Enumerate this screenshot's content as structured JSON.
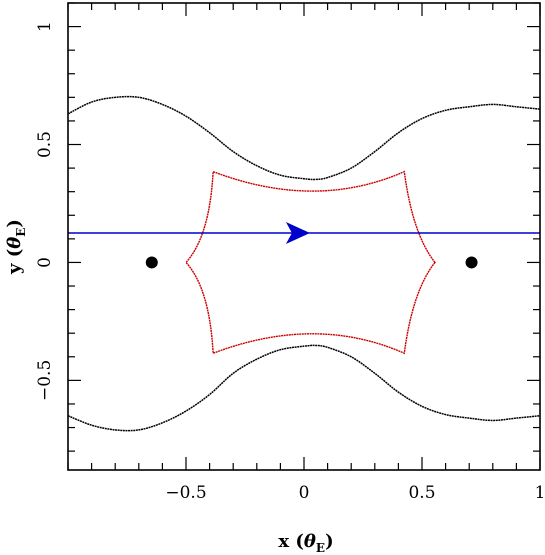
{
  "chart_data": {
    "type": "scatter",
    "xlabel": "x (θ_E)",
    "ylabel": "y (θ_E)",
    "axis_label_parts": {
      "x": {
        "lead": "x (",
        "theta": "θ",
        "sub": "E",
        "tail": ")"
      },
      "y": {
        "lead": "y (",
        "theta": "θ",
        "sub": "E",
        "tail": ")"
      }
    },
    "xlim": [
      -1.0,
      1.0
    ],
    "ylim": [
      -0.88,
      1.1
    ],
    "xticks": [
      {
        "value": -0.5,
        "label": "−0.5"
      },
      {
        "value": 0,
        "label": "0"
      },
      {
        "value": 0.5,
        "label": "0.5"
      },
      {
        "value": 1,
        "label": "1"
      }
    ],
    "yticks": [
      {
        "value": -0.5,
        "label": "−0.5"
      },
      {
        "value": 0,
        "label": "0"
      },
      {
        "value": 0.5,
        "label": "0.5"
      },
      {
        "value": 1,
        "label": "1"
      }
    ],
    "x_minor_step": 0.1,
    "y_minor_step": 0.1,
    "grid": false,
    "series": [
      {
        "role": "critical-curve-upper",
        "color": "#000000",
        "points": [
          [
            -1.0,
            0.63
          ],
          [
            -0.9,
            0.68
          ],
          [
            -0.8,
            0.7
          ],
          [
            -0.7,
            0.7
          ],
          [
            -0.6,
            0.67
          ],
          [
            -0.5,
            0.62
          ],
          [
            -0.4,
            0.55
          ],
          [
            -0.3,
            0.47
          ],
          [
            -0.2,
            0.41
          ],
          [
            -0.1,
            0.37
          ],
          [
            0.0,
            0.355
          ],
          [
            0.05,
            0.352
          ],
          [
            0.1,
            0.36
          ],
          [
            0.2,
            0.4
          ],
          [
            0.3,
            0.47
          ],
          [
            0.4,
            0.55
          ],
          [
            0.5,
            0.61
          ],
          [
            0.6,
            0.645
          ],
          [
            0.7,
            0.66
          ],
          [
            0.8,
            0.67
          ],
          [
            0.9,
            0.66
          ],
          [
            1.0,
            0.65
          ]
        ]
      },
      {
        "role": "critical-curve-lower",
        "color": "#000000",
        "points": [
          [
            -1.0,
            -0.65
          ],
          [
            -0.9,
            -0.69
          ],
          [
            -0.8,
            -0.71
          ],
          [
            -0.7,
            -0.71
          ],
          [
            -0.6,
            -0.68
          ],
          [
            -0.5,
            -0.63
          ],
          [
            -0.4,
            -0.56
          ],
          [
            -0.3,
            -0.47
          ],
          [
            -0.2,
            -0.41
          ],
          [
            -0.1,
            -0.37
          ],
          [
            0.0,
            -0.355
          ],
          [
            0.05,
            -0.352
          ],
          [
            0.1,
            -0.36
          ],
          [
            0.2,
            -0.4
          ],
          [
            0.3,
            -0.47
          ],
          [
            0.4,
            -0.55
          ],
          [
            0.5,
            -0.61
          ],
          [
            0.6,
            -0.645
          ],
          [
            0.7,
            -0.66
          ],
          [
            0.8,
            -0.67
          ],
          [
            0.9,
            -0.66
          ],
          [
            1.0,
            -0.65
          ]
        ]
      },
      {
        "role": "caustic",
        "color": "#cc0000",
        "cusps": [
          [
            0.555,
            0.0
          ],
          [
            0.425,
            0.385
          ],
          [
            -0.385,
            0.385
          ],
          [
            -0.5,
            0.0
          ],
          [
            -0.385,
            -0.385
          ],
          [
            0.425,
            -0.385
          ]
        ],
        "controls": [
          [
            0.46,
            0.12
          ],
          [
            0.05,
            0.22
          ],
          [
            -0.4,
            0.11
          ],
          [
            -0.4,
            -0.11
          ],
          [
            0.05,
            -0.22
          ],
          [
            0.46,
            -0.12
          ]
        ]
      },
      {
        "role": "source-trajectory",
        "color": "#0000cc",
        "points": [
          [
            -1.0,
            0.125
          ],
          [
            1.0,
            0.125
          ]
        ],
        "arrow_at": [
          -0.03,
          0.125
        ]
      },
      {
        "role": "source-position",
        "color": "#0000cc",
        "points": [
          [
            0.0,
            0.125
          ]
        ]
      },
      {
        "role": "lens-positions",
        "color": "#000000",
        "points": [
          [
            -0.645,
            0.0
          ],
          [
            0.71,
            0.0
          ]
        ]
      }
    ]
  }
}
